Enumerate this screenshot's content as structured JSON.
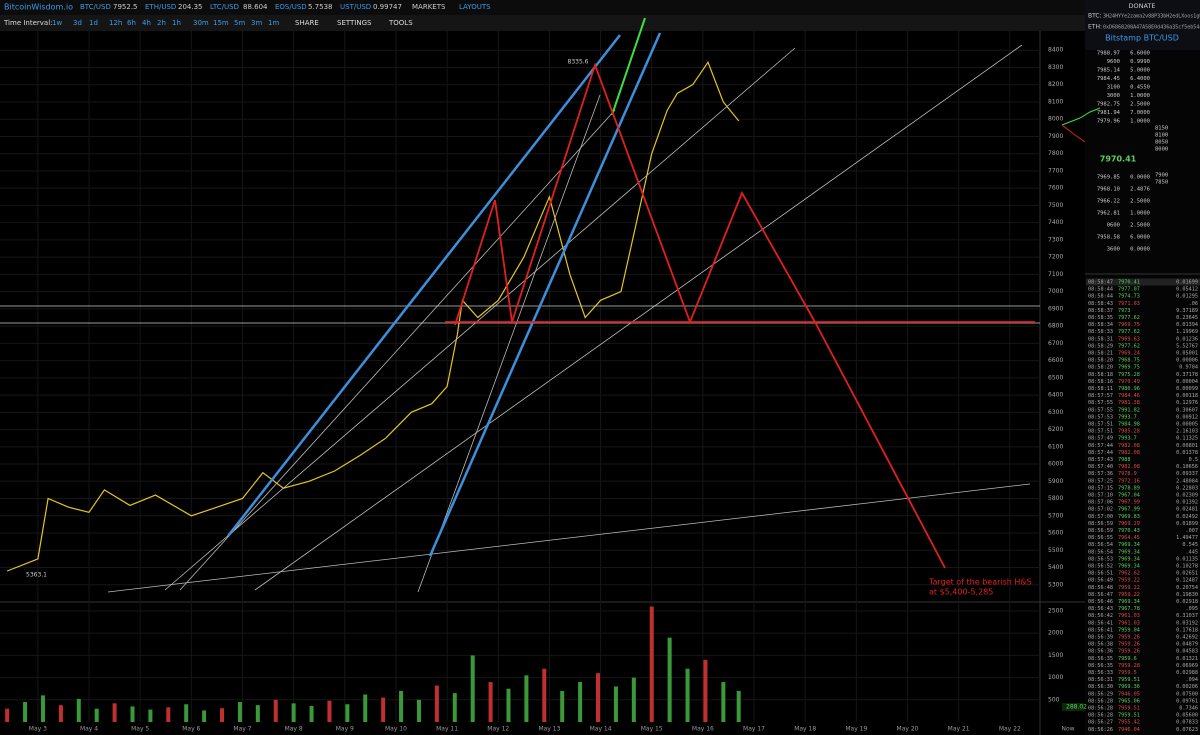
{
  "header": {
    "logo": "BitcoinWisdom.io",
    "tickers": [
      {
        "pair": "BTC/USD",
        "price": "7952.5"
      },
      {
        "pair": "ETH/USD",
        "price": "204.35"
      },
      {
        "pair": "LTC/USD",
        "price": "88.604"
      },
      {
        "pair": "EOS/USD",
        "price": "5.7538"
      },
      {
        "pair": "UST/USD",
        "price": "0.99747"
      }
    ],
    "menu": [
      "MARKETS",
      "LAYOUTS"
    ]
  },
  "donate": {
    "title": "DONATE",
    "btc_label": "BTC:",
    "btc": "3H24HYYe2zama2v88P33bH2edLXoos1gUd",
    "eth_label": "ETH:",
    "eth": "0xD6868208A47A58E0d436a35cf5eb5442f0ff6241"
  },
  "toolbar": {
    "label": "Time Interval:",
    "intervals": [
      "1w",
      "3d",
      "1d",
      "12h",
      "6h",
      "4h",
      "2h",
      "1h",
      "30m",
      "15m",
      "5m",
      "3m",
      "1m"
    ],
    "menus": [
      "SHARE",
      "SETTINGS",
      "TOOLS"
    ]
  },
  "chart": {
    "price_lim": [
      5200,
      8500
    ],
    "price_ticks": [
      5300,
      5400,
      5500,
      5600,
      5700,
      5800,
      5900,
      6000,
      6100,
      6200,
      6300,
      6400,
      6500,
      6600,
      6700,
      6800,
      6900,
      7000,
      7100,
      7200,
      7300,
      7400,
      7500,
      7600,
      7700,
      7800,
      7900,
      8000,
      8100,
      8200,
      8300,
      8400
    ],
    "volume_lim": [
      0,
      2800
    ],
    "volume_ticks": [
      500,
      1000,
      1500,
      2000,
      2500
    ],
    "xlim": [
      -0.74,
      19.59
    ],
    "dates": [
      "May 3",
      "May 4",
      "May 5",
      "May 6",
      "May 7",
      "May 8",
      "May 9",
      "May 10",
      "May 11",
      "May 12",
      "May 13",
      "May 14",
      "May 15",
      "May 16",
      "May 17",
      "May 18",
      "May 19",
      "May 20",
      "May 21",
      "May 22"
    ],
    "now_label": "Now",
    "price_x": [
      -0.6,
      0,
      0.2,
      0.6,
      1,
      1.3,
      1.8,
      2.3,
      3,
      3.4,
      4,
      4.4,
      4.8,
      5.3,
      5.8,
      6.3,
      6.8,
      7.3,
      7.7,
      8,
      8.2,
      8.3,
      8.6,
      9,
      9.5,
      10,
      10.4,
      10.7,
      11,
      11.4,
      11.7,
      12,
      12.3,
      12.5,
      12.8,
      13.1,
      13.4,
      13.7
    ],
    "price": [
      5380,
      5450,
      5800,
      5750,
      5720,
      5850,
      5760,
      5820,
      5700,
      5740,
      5800,
      5950,
      5860,
      5900,
      5960,
      6050,
      6150,
      6300,
      6350,
      6450,
      6750,
      6950,
      6850,
      6950,
      7200,
      7550,
      7100,
      6850,
      6950,
      7000,
      7400,
      7800,
      8050,
      8150,
      8200,
      8330,
      8100,
      7990
    ],
    "volume_x": [
      -0.6,
      -0.25,
      0.1,
      0.45,
      0.8,
      1.15,
      1.5,
      1.85,
      2.2,
      2.55,
      2.9,
      3.25,
      3.6,
      3.95,
      4.3,
      4.65,
      5.0,
      5.35,
      5.7,
      6.05,
      6.4,
      6.75,
      7.1,
      7.45,
      7.8,
      8.15,
      8.5,
      8.85,
      9.2,
      9.55,
      9.9,
      10.25,
      10.6,
      10.95,
      11.3,
      11.65,
      12.0,
      12.35,
      12.7,
      13.05,
      13.4,
      13.7
    ],
    "volume": [
      300,
      450,
      600,
      380,
      520,
      300,
      420,
      350,
      280,
      330,
      400,
      260,
      310,
      450,
      380,
      500,
      420,
      360,
      480,
      400,
      620,
      550,
      700,
      500,
      820,
      650,
      1500,
      900,
      750,
      1050,
      1200,
      700,
      900,
      1100,
      800,
      1000,
      2600,
      1900,
      1200,
      1400,
      900,
      700
    ],
    "high_label": "8335.6",
    "low_label": "5363.1",
    "volume_current": "288.02",
    "target": [
      "Target of the bearish H&S",
      "at $5,400-5,285"
    ]
  },
  "panel": {
    "title": "Bitstamp BTC/USD",
    "asks": [
      [
        "7988.97",
        "6.6000"
      ],
      [
        "9600",
        "0.9990"
      ],
      [
        "7985.14",
        "5.0000"
      ],
      [
        "7984.45",
        "6.4000"
      ],
      [
        "3100",
        "0.4550"
      ],
      [
        "3000",
        "1.0000"
      ],
      [
        "7982.75",
        "2.5000"
      ],
      [
        "7981.94",
        "7.0000"
      ],
      [
        "7979.96",
        "1.0000"
      ]
    ],
    "last": "7970.41",
    "bids": [
      [
        "7969.85",
        "0.0000"
      ],
      [
        "7968.10",
        "2.4876"
      ],
      [
        "7966.22",
        "2.5000"
      ],
      [
        "7962.81",
        "1.0000"
      ],
      [
        "0600",
        "2.5000"
      ],
      [
        "7958.58",
        "6.0000"
      ],
      [
        "3600",
        "0.0000"
      ]
    ],
    "depth_ticks": [
      "8150",
      "8100",
      "8050",
      "8000",
      "7900",
      "7850"
    ],
    "trades": [
      {
        "t": "08:58:47",
        "p": "7970.41",
        "a": "0.01699",
        "c": "#5ad15a"
      },
      {
        "t": "08:58:44",
        "p": "7977.07",
        "a": "0.05412",
        "c": "#5ad15a"
      },
      {
        "t": "08:58:44",
        "p": "7974.73",
        "a": "0.01295",
        "c": "#5ad15a"
      },
      {
        "t": "08:58:43",
        "p": "7971.63",
        "a": ".06",
        "c": "#e04848"
      },
      {
        "t": "08:58:37",
        "p": "7973",
        "a": "9.37189",
        "c": "#5ad15a"
      },
      {
        "t": "08:58:35",
        "p": "7977.62",
        "a": "0.23645",
        "c": "#5ad15a"
      },
      {
        "t": "08:58:34",
        "p": "7969.75",
        "a": "0.01394",
        "c": "#e04848"
      },
      {
        "t": "08:58:33",
        "p": "7977.62",
        "a": "1.19969",
        "c": "#5ad15a"
      },
      {
        "t": "08:58:31",
        "p": "7969.63",
        "a": "0.01236",
        "c": "#e04848"
      },
      {
        "t": "08:58:29",
        "p": "7977.62",
        "a": "5.52767",
        "c": "#5ad15a"
      },
      {
        "t": "08:58:21",
        "p": "7969.24",
        "a": "0.05001",
        "c": "#e04848"
      },
      {
        "t": "08:58:20",
        "p": "7968.75",
        "a": "0.00006",
        "c": "#5ad15a"
      },
      {
        "t": "08:58:20",
        "p": "7969.75",
        "a": "0.9704",
        "c": "#5ad15a"
      },
      {
        "t": "08:58:18",
        "p": "7975.28",
        "a": "0.37178",
        "c": "#5ad15a"
      },
      {
        "t": "08:58:16",
        "p": "7970.49",
        "a": "0.00004",
        "c": "#e04848"
      },
      {
        "t": "08:58:11",
        "p": "7980.96",
        "a": "0.00099",
        "c": "#5ad15a"
      },
      {
        "t": "08:57:57",
        "p": "7984.46",
        "a": "0.00118",
        "c": "#e04848"
      },
      {
        "t": "08:57:55",
        "p": "7981.38",
        "a": "0.12976",
        "c": "#e04848"
      },
      {
        "t": "08:57:55",
        "p": "7991.82",
        "a": "0.30607",
        "c": "#5ad15a"
      },
      {
        "t": "08:57:53",
        "p": "7993.7",
        "a": "0.00912",
        "c": "#5ad15a"
      },
      {
        "t": "08:57:51",
        "p": "7984.98",
        "a": "0.00005",
        "c": "#5ad15a"
      },
      {
        "t": "08:57:51",
        "p": "7985.28",
        "a": "2.16103",
        "c": "#e04848"
      },
      {
        "t": "08:57:49",
        "p": "7993.7",
        "a": "0.11325",
        "c": "#5ad15a"
      },
      {
        "t": "08:57:44",
        "p": "7982.08",
        "a": "0.00801",
        "c": "#e04848"
      },
      {
        "t": "08:57:44",
        "p": "7982.08",
        "a": "0.01378",
        "c": "#e04848"
      },
      {
        "t": "08:57:43",
        "p": "7988",
        "a": "0.5",
        "c": "#5ad15a"
      },
      {
        "t": "08:57:40",
        "p": "7982.08",
        "a": "0.10656",
        "c": "#e04848"
      },
      {
        "t": "08:57:36",
        "p": "7978.9",
        "a": "0.09337",
        "c": "#e04848"
      },
      {
        "t": "08:57:25",
        "p": "7972.16",
        "a": "2.48084",
        "c": "#e04848"
      },
      {
        "t": "08:57:15",
        "p": "7978.89",
        "a": "0.22803",
        "c": "#5ad15a"
      },
      {
        "t": "08:57:10",
        "p": "7967.04",
        "a": "0.02309",
        "c": "#5ad15a"
      },
      {
        "t": "08:57:06",
        "p": "7967.99",
        "a": "0.01392",
        "c": "#e04848"
      },
      {
        "t": "08:57:02",
        "p": "7967.99",
        "a": "0.02481",
        "c": "#5ad15a"
      },
      {
        "t": "08:57:00",
        "p": "7969.83",
        "a": "0.02492",
        "c": "#5ad15a"
      },
      {
        "t": "08:56:59",
        "p": "7969.29",
        "a": "0.01899",
        "c": "#e04848"
      },
      {
        "t": "08:56:59",
        "p": "7970.43",
        "a": ".007",
        "c": "#5ad15a"
      },
      {
        "t": "08:56:55",
        "p": "7964.45",
        "a": "1.49477",
        "c": "#e04848"
      },
      {
        "t": "08:56:54",
        "p": "7969.34",
        "a": "0.545",
        "c": "#5ad15a"
      },
      {
        "t": "08:56:54",
        "p": "7969.34",
        "a": ".445",
        "c": "#5ad15a"
      },
      {
        "t": "08:56:53",
        "p": "7969.34",
        "a": "0.01135",
        "c": "#5ad15a"
      },
      {
        "t": "08:56:52",
        "p": "7969.34",
        "a": "0.10278",
        "c": "#5ad15a"
      },
      {
        "t": "08:56:51",
        "p": "7962.62",
        "a": "0.02651",
        "c": "#e04848"
      },
      {
        "t": "08:56:49",
        "p": "7959.22",
        "a": "0.12487",
        "c": "#e04848"
      },
      {
        "t": "08:56:48",
        "p": "7959.22",
        "a": "0.20754",
        "c": "#e04848"
      },
      {
        "t": "08:56:47",
        "p": "7959.22",
        "a": "0.19830",
        "c": "#e04848"
      },
      {
        "t": "08:56:46",
        "p": "7969.34",
        "a": "0.02918",
        "c": "#5ad15a"
      },
      {
        "t": "08:56:43",
        "p": "7967.78",
        "a": ".095",
        "c": "#5ad15a"
      },
      {
        "t": "08:56:42",
        "p": "7961.03",
        "a": "0.31037",
        "c": "#e04848"
      },
      {
        "t": "08:56:41",
        "p": "7961.03",
        "a": "0.03192",
        "c": "#e04848"
      },
      {
        "t": "08:56:41",
        "p": "7959.04",
        "a": "0.17618",
        "c": "#5ad15a"
      },
      {
        "t": "08:56:39",
        "p": "7959.26",
        "a": "0.42692",
        "c": "#e04848"
      },
      {
        "t": "08:56:38",
        "p": "7959.26",
        "a": "0.04879",
        "c": "#e04848"
      },
      {
        "t": "08:56:36",
        "p": "7959.26",
        "a": "0.04583",
        "c": "#e04848"
      },
      {
        "t": "08:56:35",
        "p": "7959.6",
        "a": "0.01321",
        "c": "#5ad15a"
      },
      {
        "t": "08:56:35",
        "p": "7959.28",
        "a": "0.06969",
        "c": "#e04848"
      },
      {
        "t": "08:56:33",
        "p": "7959.5",
        "a": "0.02988",
        "c": "#e04848"
      },
      {
        "t": "08:56:31",
        "p": "7959.51",
        "a": ".094",
        "c": "#5ad15a"
      },
      {
        "t": "08:56:30",
        "p": "7969.36",
        "a": "0.00206",
        "c": "#5ad15a"
      },
      {
        "t": "08:56:29",
        "p": "7946.05",
        "a": "0.07500",
        "c": "#e04848"
      },
      {
        "t": "08:56:28",
        "p": "7965.06",
        "a": "0.09761",
        "c": "#5ad15a"
      },
      {
        "t": "08:56:28",
        "p": "7959.51",
        "a": "0.7346",
        "c": "#e04848"
      },
      {
        "t": "08:56:28",
        "p": "7959.51",
        "a": "0.05600",
        "c": "#5ad15a"
      },
      {
        "t": "08:56:27",
        "p": "7955.42",
        "a": "0.07833",
        "c": "#e04848"
      },
      {
        "t": "08:56:26",
        "p": "7946.04",
        "a": "0.07623",
        "c": "#e04848"
      }
    ]
  }
}
